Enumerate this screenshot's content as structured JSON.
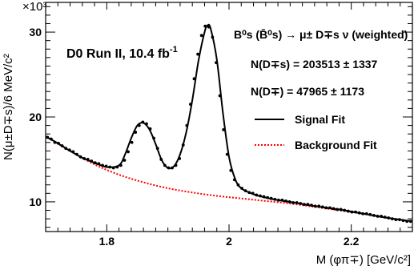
{
  "chart_data": {
    "type": "line",
    "xlabel": "M (φπ∓) [GeV/c²]",
    "ylabel": "N(μ±D∓s)/6 MeV/c²",
    "y_exponent_label": "×10³",
    "xlim": [
      1.7,
      2.3
    ],
    "ylim": [
      6.5,
      33.5
    ],
    "x_ticks": [
      1.8,
      2.0,
      2.2
    ],
    "x_tick_labels": [
      "1.8",
      "2",
      "2.2"
    ],
    "y_ticks": [
      10,
      20,
      30
    ],
    "y_tick_labels": [
      "10",
      "20",
      "30"
    ],
    "annotations": {
      "experiment": "D0 Run II, 10.4 fb",
      "experiment_sup": "-1",
      "decay": "B⁰s (B̄⁰s) → μ± D∓s ν (weighted)",
      "yield_ds": "N(D∓s) =  203513 ± 1337",
      "yield_d": "N(D∓) =  47965 ± 1173"
    },
    "legend": {
      "placement": "top-right",
      "entries": [
        {
          "label": "Signal Fit",
          "color": "#000000",
          "style": "solid"
        },
        {
          "label": "Background Fit",
          "color": "#ff0000",
          "style": "dotted"
        }
      ]
    },
    "series": [
      {
        "name": "Signal Fit",
        "color": "#000000",
        "x": [
          1.7,
          1.72,
          1.74,
          1.76,
          1.78,
          1.8,
          1.82,
          1.83,
          1.84,
          1.85,
          1.86,
          1.87,
          1.88,
          1.89,
          1.9,
          1.91,
          1.92,
          1.93,
          1.94,
          1.95,
          1.96,
          1.965,
          1.97,
          1.98,
          1.99,
          2.0,
          2.01,
          2.02,
          2.04,
          2.06,
          2.08,
          2.1,
          2.14,
          2.18,
          2.22,
          2.26,
          2.3
        ],
        "y": [
          17.7,
          16.9,
          16.0,
          15.2,
          14.6,
          14.1,
          14.3,
          15.6,
          17.5,
          19.0,
          19.3,
          18.5,
          16.8,
          14.9,
          14.0,
          14.2,
          15.6,
          18.2,
          22.0,
          26.6,
          30.0,
          30.8,
          30.4,
          26.8,
          20.5,
          15.3,
          12.7,
          11.6,
          10.9,
          10.5,
          10.2,
          10.0,
          9.5,
          9.1,
          8.6,
          8.1,
          7.7
        ]
      },
      {
        "name": "Background Fit",
        "color": "#ff0000",
        "x": [
          1.7,
          1.74,
          1.78,
          1.82,
          1.86,
          1.9,
          1.94,
          1.98,
          2.02,
          2.06,
          2.1,
          2.14,
          2.18,
          2.22,
          2.26,
          2.3
        ],
        "y": [
          17.7,
          16.0,
          14.4,
          13.2,
          12.3,
          11.6,
          11.1,
          10.7,
          10.4,
          10.1,
          9.8,
          9.4,
          9.0,
          8.6,
          8.1,
          7.7
        ]
      },
      {
        "name": "Data",
        "type": "points",
        "x": [
          1.703,
          1.709,
          1.715,
          1.721,
          1.727,
          1.733,
          1.739,
          1.745,
          1.751,
          1.757,
          1.763,
          1.769,
          1.775,
          1.781,
          1.787,
          1.793,
          1.799,
          1.805,
          1.811,
          1.817,
          1.823,
          1.829,
          1.835,
          1.841,
          1.847,
          1.853,
          1.859,
          1.865,
          1.871,
          1.877,
          1.883,
          1.889,
          1.895,
          1.901,
          1.907,
          1.913,
          1.919,
          1.925,
          1.931,
          1.937,
          1.943,
          1.949,
          1.955,
          1.961,
          1.967,
          1.973,
          1.979,
          1.985,
          1.991,
          1.997,
          2.003,
          2.009,
          2.015,
          2.021,
          2.027,
          2.033,
          2.039,
          2.045,
          2.051,
          2.057,
          2.063,
          2.069,
          2.075,
          2.081,
          2.087,
          2.093,
          2.099,
          2.105,
          2.111,
          2.117,
          2.123,
          2.129,
          2.135,
          2.141,
          2.147,
          2.153,
          2.159,
          2.165,
          2.171,
          2.177,
          2.183,
          2.189,
          2.195,
          2.201,
          2.207,
          2.213,
          2.219,
          2.225,
          2.231,
          2.237,
          2.243,
          2.249,
          2.255,
          2.261,
          2.267,
          2.273,
          2.279,
          2.285,
          2.291,
          2.297
        ],
        "y": [
          17.6,
          17.4,
          17.0,
          16.9,
          16.6,
          16.3,
          16.1,
          15.9,
          15.6,
          15.3,
          15.1,
          15.0,
          14.8,
          14.6,
          14.5,
          14.3,
          14.2,
          14.1,
          14.0,
          14.1,
          14.3,
          14.9,
          15.9,
          17.0,
          18.2,
          19.0,
          19.4,
          19.2,
          18.6,
          17.5,
          16.3,
          15.0,
          14.3,
          14.0,
          14.0,
          14.3,
          15.1,
          16.7,
          19.0,
          21.5,
          24.5,
          27.4,
          29.6,
          30.7,
          30.6,
          29.4,
          26.4,
          22.5,
          18.5,
          15.6,
          13.7,
          12.6,
          12.0,
          11.6,
          11.3,
          11.1,
          11.0,
          10.8,
          10.7,
          10.6,
          10.5,
          10.4,
          10.3,
          10.2,
          10.2,
          10.1,
          10.0,
          9.9,
          9.9,
          9.8,
          9.7,
          9.7,
          9.6,
          9.5,
          9.5,
          9.4,
          9.3,
          9.3,
          9.2,
          9.1,
          9.1,
          9.0,
          8.9,
          8.8,
          8.8,
          8.7,
          8.6,
          8.6,
          8.5,
          8.4,
          8.3,
          8.3,
          8.2,
          8.1,
          8.0,
          7.9,
          7.9,
          7.8,
          7.7,
          7.7
        ]
      }
    ]
  }
}
